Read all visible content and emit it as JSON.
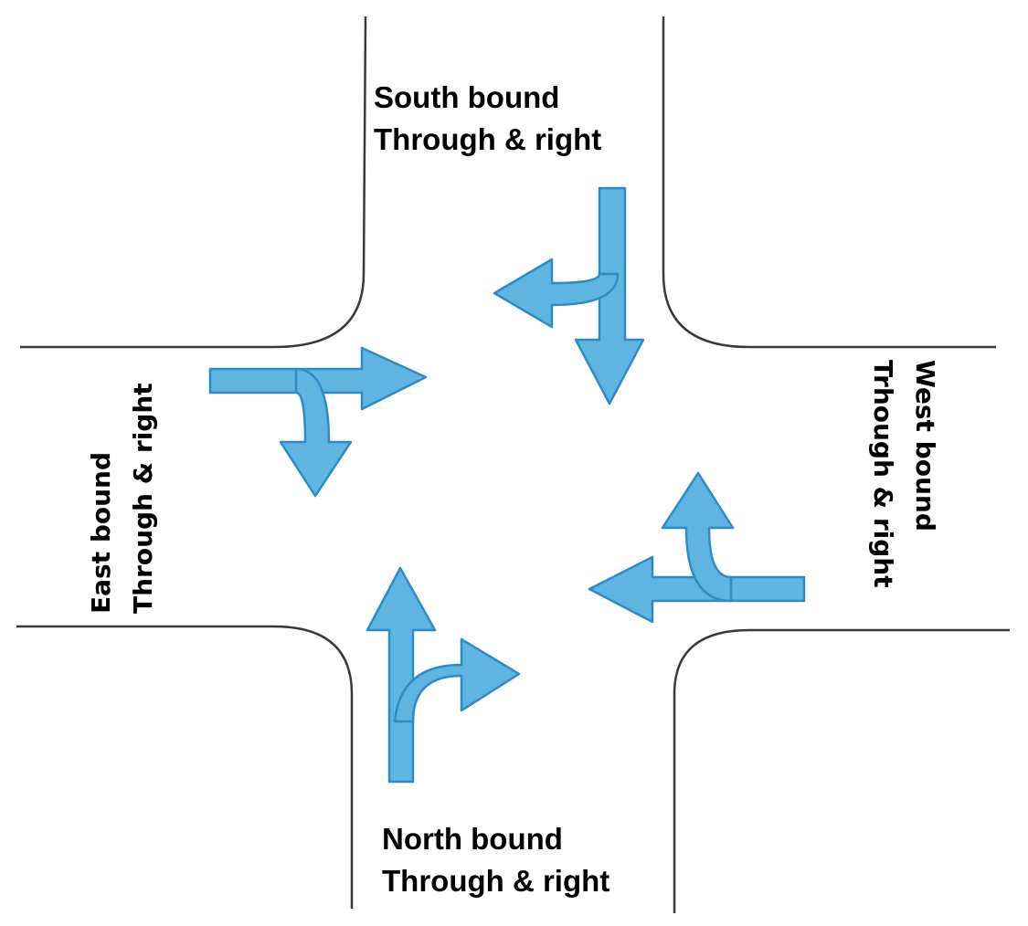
{
  "labels": {
    "south": {
      "line1": "South bound",
      "line2": "Through & right"
    },
    "north": {
      "line1": "North bound",
      "line2": "Through & right"
    },
    "east": {
      "line1": "East bound",
      "line2": "Through & right"
    },
    "west": {
      "line1": "West bound",
      "line2": "Trhough & right"
    }
  },
  "colors": {
    "arrow_fill": "#5fb4e2",
    "arrow_stroke": "#2d8cc6",
    "curb": "#3a3a3a"
  }
}
